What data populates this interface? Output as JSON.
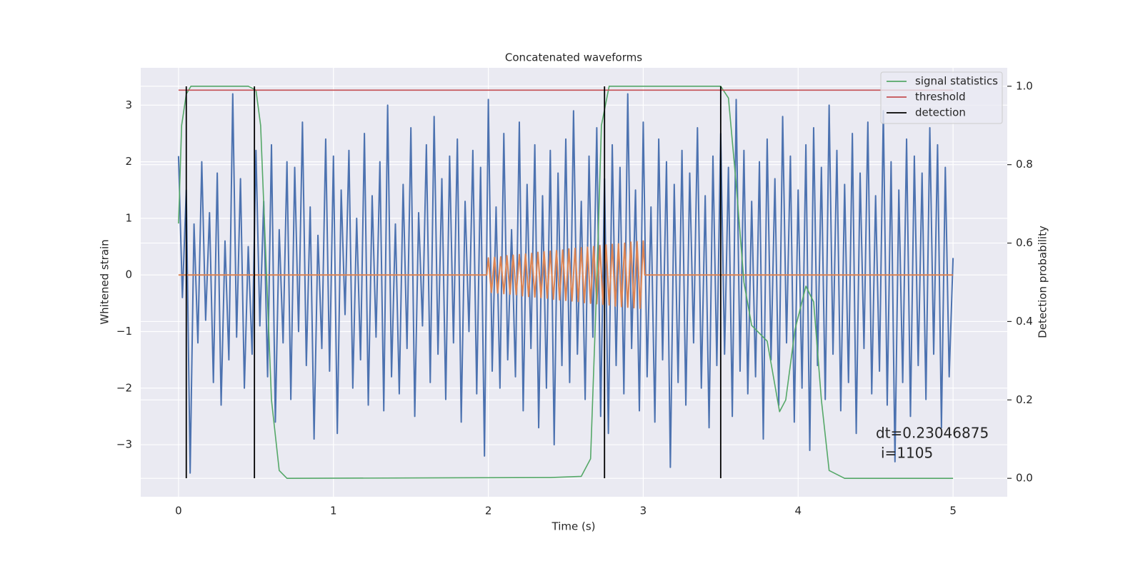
{
  "chart_data": {
    "type": "line",
    "title": "Concatenated waveforms",
    "xlabel": "Time (s)",
    "ylabel": "Whitened strain",
    "y2label": "Detection probability",
    "xlim": [
      -0.244,
      5.35
    ],
    "ylim": [
      -3.92,
      3.66
    ],
    "y2lim": [
      -0.047,
      1.047
    ],
    "xticks": [
      0,
      1,
      2,
      3,
      4,
      5
    ],
    "yticks": [
      {
        "value": -3,
        "label": "−3"
      },
      {
        "value": -2,
        "label": "−2"
      },
      {
        "value": -1,
        "label": "−1"
      },
      0,
      1,
      2,
      3
    ],
    "y2ticks": [
      {
        "value": 0,
        "label": "0.0"
      },
      0.2,
      0.4,
      0.6,
      0.8,
      {
        "value": 1,
        "label": "1.0"
      }
    ],
    "grid": true,
    "legend": "upper right",
    "annotations": [
      "dt=0.23046875",
      "i=1105"
    ],
    "series": [
      {
        "color": "#4c72b0",
        "x": [
          0,
          0.025,
          0.05,
          0.075,
          0.1,
          0.125,
          0.15,
          0.175,
          0.2,
          0.225,
          0.25,
          0.275,
          0.3,
          0.325,
          0.35,
          0.375,
          0.4,
          0.425,
          0.45,
          0.475,
          0.5,
          0.525,
          0.55,
          0.575,
          0.6,
          0.625,
          0.65,
          0.675,
          0.7,
          0.725,
          0.75,
          0.775,
          0.8,
          0.825,
          0.85,
          0.875,
          0.9,
          0.925,
          0.95,
          0.975,
          1,
          1.025,
          1.05,
          1.075,
          1.1,
          1.125,
          1.15,
          1.175,
          1.2,
          1.225,
          1.25,
          1.275,
          1.3,
          1.325,
          1.35,
          1.375,
          1.4,
          1.425,
          1.45,
          1.475,
          1.5,
          1.525,
          1.55,
          1.575,
          1.6,
          1.625,
          1.65,
          1.675,
          1.7,
          1.725,
          1.75,
          1.775,
          1.8,
          1.825,
          1.85,
          1.875,
          1.9,
          1.925,
          1.95,
          1.975,
          2,
          2.025,
          2.05,
          2.075,
          2.1,
          2.125,
          2.15,
          2.175,
          2.2,
          2.225,
          2.25,
          2.275,
          2.3,
          2.325,
          2.35,
          2.375,
          2.4,
          2.425,
          2.45,
          2.475,
          2.5,
          2.525,
          2.55,
          2.575,
          2.6,
          2.625,
          2.65,
          2.675,
          2.7,
          2.725,
          2.75,
          2.775,
          2.8,
          2.825,
          2.85,
          2.875,
          2.9,
          2.925,
          2.95,
          2.975,
          3,
          3.025,
          3.05,
          3.075,
          3.1,
          3.125,
          3.15,
          3.175,
          3.2,
          3.225,
          3.25,
          3.275,
          3.3,
          3.325,
          3.35,
          3.375,
          3.4,
          3.425,
          3.45,
          3.475,
          3.5,
          3.525,
          3.55,
          3.575,
          3.6,
          3.625,
          3.65,
          3.675,
          3.7,
          3.725,
          3.75,
          3.775,
          3.8,
          3.825,
          3.85,
          3.875,
          3.9,
          3.925,
          3.95,
          3.975,
          4,
          4.025,
          4.05,
          4.075,
          4.1,
          4.125,
          4.15,
          4.175,
          4.2,
          4.225,
          4.25,
          4.275,
          4.3,
          4.325,
          4.35,
          4.375,
          4.4,
          4.425,
          4.45,
          4.475,
          4.5,
          4.525,
          4.55,
          4.575,
          4.6,
          4.625,
          4.65,
          4.675,
          4.7,
          4.725,
          4.75,
          4.775,
          4.8,
          4.825,
          4.85,
          4.875,
          4.9,
          4.925,
          4.95,
          4.975,
          5
        ],
        "values": [
          2.1,
          -0.4,
          1.5,
          -3.5,
          0.9,
          -1.2,
          2.0,
          -0.8,
          1.1,
          -1.9,
          1.8,
          -2.3,
          0.6,
          -1.5,
          3.2,
          -1.1,
          1.7,
          -2.0,
          0.5,
          -1.4,
          2.2,
          -0.9,
          1.3,
          -1.8,
          2.3,
          -2.6,
          0.8,
          -1.2,
          2.0,
          -2.2,
          1.9,
          -1.0,
          2.7,
          -1.6,
          1.2,
          -2.9,
          0.7,
          -1.3,
          2.4,
          -1.7,
          2.1,
          -2.8,
          1.5,
          -0.7,
          2.2,
          -2.0,
          1.0,
          -1.5,
          2.5,
          -2.3,
          1.4,
          -1.1,
          2.0,
          -2.4,
          3.0,
          -1.8,
          0.9,
          -2.1,
          1.6,
          -1.3,
          2.6,
          -2.5,
          1.1,
          -0.9,
          2.3,
          -1.9,
          2.8,
          -1.4,
          1.7,
          -2.2,
          2.1,
          -1.2,
          2.4,
          -2.6,
          1.3,
          -1.0,
          2.2,
          -2.1,
          1.9,
          -3.2,
          3.1,
          -1.7,
          1.2,
          -2.0,
          2.5,
          -1.5,
          0.8,
          -1.8,
          2.7,
          -2.4,
          1.6,
          -1.3,
          2.3,
          -2.7,
          1.4,
          -2.0,
          2.2,
          -3.0,
          1.8,
          -1.6,
          2.4,
          -1.9,
          2.9,
          -1.4,
          1.3,
          -2.2,
          2.1,
          -1.1,
          2.6,
          -2.5,
          1.7,
          -2.8,
          2.3,
          -1.6,
          1.9,
          -2.1,
          3.2,
          -1.3,
          1.5,
          -2.4,
          2.7,
          -1.8,
          1.2,
          -2.6,
          2.4,
          -1.5,
          2.0,
          -3.4,
          1.6,
          -1.9,
          2.2,
          -2.3,
          1.8,
          -1.2,
          2.6,
          -2.0,
          1.4,
          -2.7,
          2.1,
          -1.6,
          2.5,
          -1.4,
          1.9,
          -2.5,
          3.1,
          -1.7,
          2.2,
          -2.1,
          1.3,
          -1.8,
          2.0,
          -2.9,
          2.4,
          -1.5,
          1.7,
          -2.3,
          2.8,
          -1.2,
          2.1,
          -2.6,
          1.5,
          -2.0,
          2.3,
          -3.1,
          2.6,
          -1.6,
          1.9,
          -2.2,
          3.0,
          -1.4,
          2.2,
          -2.4,
          1.6,
          -1.9,
          2.5,
          -2.8,
          1.8,
          -1.3,
          2.7,
          -2.1,
          1.4,
          -1.7,
          2.9,
          -2.3,
          2.0,
          -3.3,
          1.5,
          -1.9,
          2.4,
          -2.5,
          2.1,
          -1.6,
          1.8,
          -2.2,
          2.6,
          -1.4,
          2.3,
          -2.7,
          1.9,
          -1.8,
          0.3
        ]
      },
      {
        "color": "#dd8452",
        "x": [
          0,
          1.99,
          2,
          2.02,
          2.04,
          2.06,
          2.08,
          2.1,
          2.12,
          2.14,
          2.16,
          2.18,
          2.2,
          2.22,
          2.24,
          2.26,
          2.28,
          2.3,
          2.32,
          2.34,
          2.36,
          2.38,
          2.4,
          2.42,
          2.44,
          2.46,
          2.48,
          2.5,
          2.52,
          2.54,
          2.56,
          2.58,
          2.6,
          2.62,
          2.64,
          2.66,
          2.68,
          2.7,
          2.72,
          2.74,
          2.76,
          2.78,
          2.8,
          2.82,
          2.84,
          2.86,
          2.88,
          2.9,
          2.92,
          2.94,
          2.96,
          2.98,
          3,
          3.01,
          5
        ],
        "values": [
          0,
          0,
          0.3,
          -0.31,
          0.31,
          -0.32,
          0.32,
          -0.33,
          0.34,
          -0.34,
          0.35,
          -0.35,
          0.36,
          -0.37,
          0.37,
          -0.38,
          0.38,
          -0.39,
          0.4,
          -0.4,
          0.41,
          -0.41,
          0.42,
          -0.43,
          0.43,
          -0.44,
          0.44,
          -0.45,
          0.46,
          -0.46,
          0.47,
          -0.47,
          0.48,
          -0.49,
          0.49,
          -0.5,
          0.5,
          -0.51,
          0.52,
          -0.52,
          0.53,
          -0.53,
          0.54,
          -0.55,
          0.55,
          -0.56,
          0.56,
          -0.57,
          0.58,
          -0.58,
          0.59,
          -0.59,
          0.6,
          0,
          0
        ]
      },
      {
        "name": "signal statistics",
        "color": "#55a868",
        "axis": "y2",
        "x": [
          0,
          0.02,
          0.05,
          0.08,
          0.45,
          0.5,
          0.53,
          0.56,
          0.6,
          0.65,
          0.7,
          2.4,
          2.6,
          2.66,
          2.7,
          2.73,
          2.78,
          3.5,
          3.55,
          3.6,
          3.65,
          3.7,
          3.8,
          3.88,
          3.92,
          3.98,
          4.05,
          4.1,
          4.15,
          4.2,
          4.3,
          5
        ],
        "values": [
          0.65,
          0.9,
          0.98,
          1.0,
          1.0,
          0.99,
          0.9,
          0.6,
          0.2,
          0.02,
          0.0,
          0.002,
          0.005,
          0.05,
          0.5,
          0.9,
          1.0,
          1.0,
          0.97,
          0.75,
          0.5,
          0.39,
          0.35,
          0.17,
          0.2,
          0.38,
          0.49,
          0.45,
          0.2,
          0.02,
          0.0,
          0.0
        ]
      },
      {
        "name": "threshold",
        "color": "#c44e52",
        "axis": "y2",
        "x": [
          0,
          5
        ],
        "values": [
          0.99,
          0.99
        ]
      },
      {
        "name": "detection",
        "color": "#000000",
        "style": "vline",
        "x": [
          0.05,
          0.49,
          2.75,
          3.5
        ]
      }
    ]
  }
}
